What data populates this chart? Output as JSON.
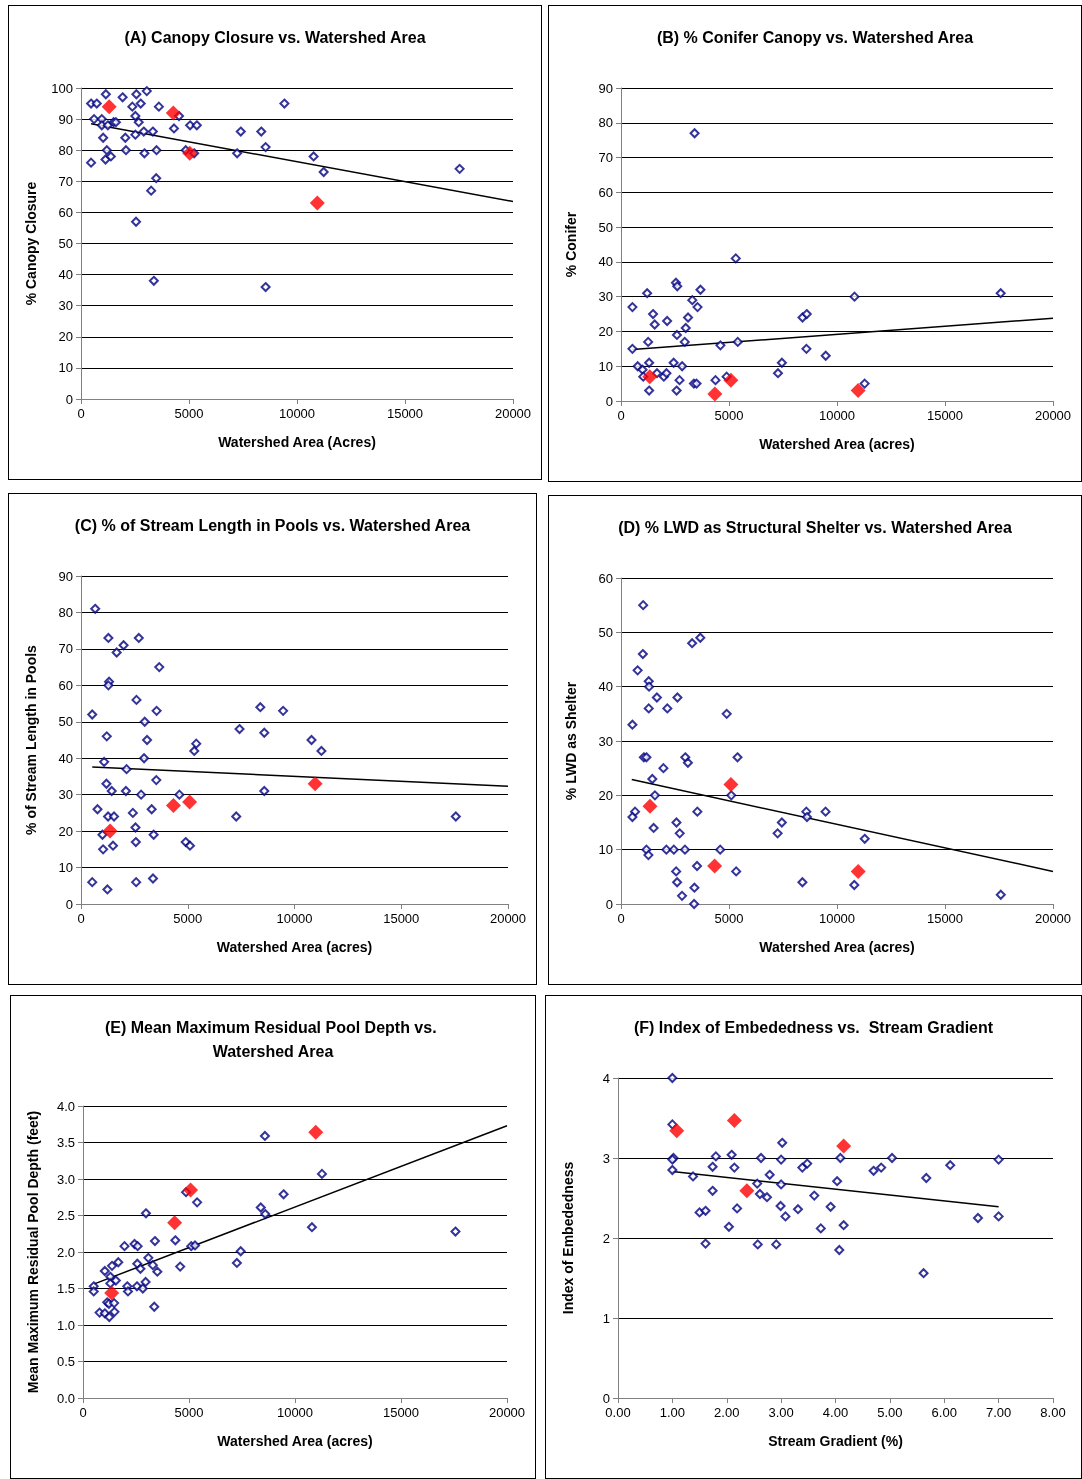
{
  "chart_data": [
    {
      "type": "scatter",
      "title": "(A) Canopy Closure vs. Watershed Area",
      "xlabel": "Watershed Area (Acres)",
      "ylabel": "% Canopy Closure",
      "xlim": [
        0,
        20000
      ],
      "xticks": [
        0,
        5000,
        10000,
        15000,
        20000
      ],
      "ylim": [
        0,
        100
      ],
      "yticks": [
        0,
        10,
        20,
        30,
        40,
        50,
        60,
        70,
        80,
        90,
        100
      ],
      "grid": "y",
      "marker": "diamond",
      "series": [
        {
          "color": "#000080",
          "x": [
            466,
            730,
            1150,
            1927,
            2564,
            3046,
            606,
            963,
            963,
            1243,
            1507,
            1616,
            1026,
            2051,
            2377,
            2517,
            2765,
            2672,
            2517,
            2906,
            3326,
            3606,
            1197,
            2082,
            1135,
            1383,
            466,
            2937,
            3497,
            3482,
            3248,
            2548,
            3372,
            4305,
            4538,
            5051,
            5362,
            4849,
            5238,
            7227,
            7397,
            8345,
            8547,
            8547,
            9417,
            10769,
            11235,
            17529
          ],
          "values": [
            95,
            95,
            98,
            97,
            98,
            99,
            90,
            90,
            88,
            88,
            89,
            89,
            84,
            84,
            94,
            91,
            95,
            89,
            85,
            86,
            86,
            94,
            80,
            80,
            77,
            78,
            76,
            79,
            80,
            71,
            67,
            57,
            38,
            87,
            91,
            88,
            88,
            80,
            79,
            79,
            86,
            86,
            81,
            36,
            95,
            78,
            73,
            74
          ]
        },
        {
          "color": "#ff0000",
          "x": [
            1305,
            4274,
            5035,
            10940
          ],
          "values": [
            94,
            92,
            79,
            63
          ]
        },
        {
          "type": "line",
          "marker": "none",
          "color": "#000000",
          "x": [
            466,
            20000
          ],
          "values": [
            88.5,
            63.5
          ]
        }
      ]
    },
    {
      "type": "scatter",
      "title": "(B) % Conifer Canopy vs. Watershed Area",
      "xlabel": "Watershed Area (acres)",
      "ylabel": "% Conifer",
      "xlim": [
        0,
        20000
      ],
      "xticks": [
        0,
        5000,
        10000,
        15000,
        20000
      ],
      "ylim": [
        0,
        90
      ],
      "yticks": [
        0,
        10,
        20,
        30,
        40,
        50,
        60,
        70,
        80,
        90
      ],
      "grid": "y",
      "marker": "diamond",
      "series": [
        {
          "color": "#000080",
          "x": [
            530,
            530,
            772,
            999,
            1030,
            1211,
            1257,
            1302,
            1302,
            1484,
            1560,
            1666,
            1984,
            2105,
            2135,
            2438,
            2544,
            2604,
            2589,
            2574,
            2710,
            2831,
            2952,
            2998,
            3104,
            3301,
            3543,
            3679,
            3407,
            3376,
            3498,
            4375,
            4603,
            4890,
            5314,
            5405,
            7267,
            7449,
            8403,
            8600,
            8585,
            9478,
            10810,
            11280,
            17578
          ],
          "values": [
            27,
            15,
            10,
            9,
            7,
            31,
            17,
            11,
            3,
            25,
            22,
            8,
            7,
            8,
            23,
            11,
            34,
            33,
            19,
            3,
            6,
            10,
            17,
            21,
            24,
            29,
            27,
            32,
            77,
            5,
            5,
            6,
            16,
            7,
            41,
            17,
            8,
            11,
            24,
            25,
            15,
            13,
            30,
            5,
            31
          ]
        },
        {
          "color": "#ff0000",
          "x": [
            1332,
            4345,
            5087,
            10977
          ],
          "values": [
            7,
            2,
            6,
            3
          ]
        },
        {
          "type": "line",
          "marker": "none",
          "color": "#000000",
          "x": [
            530,
            20000
          ],
          "values": [
            14.8,
            23.8
          ]
        }
      ]
    },
    {
      "type": "scatter",
      "title": "(C) % of Stream Length in Pools vs. Watershed Area",
      "xlabel": "Watershed Area (acres)",
      "ylabel": "% of Stream Length in Pools",
      "xlim": [
        0,
        20000
      ],
      "xticks": [
        0,
        5000,
        10000,
        15000,
        20000
      ],
      "ylim": [
        0,
        90
      ],
      "yticks": [
        0,
        10,
        20,
        30,
        40,
        50,
        60,
        70,
        80,
        90
      ],
      "grid": "y",
      "marker": "diamond",
      "series": [
        {
          "color": "#000080",
          "x": [
            665,
            1284,
            1995,
            1671,
            2707,
            3666,
            1315,
            1284,
            526,
            2598,
            3542,
            2985,
            1207,
            3094,
            1083,
            2135,
            2954,
            1191,
            1439,
            2104,
            2815,
            3527,
            773,
            1268,
            1547,
            2429,
            3310,
            1005,
            2552,
            3403,
            1036,
            1500,
            2568,
            526,
            1237,
            2583,
            3372,
            4609,
            4903,
            5104,
            5305,
            5398,
            7270,
            7425,
            8399,
            8585,
            8585,
            9467,
            10797,
            11261,
            17556
          ],
          "values": [
            81,
            73,
            71,
            69,
            73,
            65,
            61,
            60,
            52,
            56,
            53,
            50,
            46,
            45,
            39,
            37,
            40,
            33,
            31,
            31,
            30,
            34,
            26,
            24,
            24,
            25,
            26,
            19,
            21,
            19,
            15,
            16,
            17,
            6,
            4,
            6,
            7,
            30,
            17,
            16,
            42,
            44,
            24,
            48,
            54,
            47,
            31,
            53,
            45,
            42,
            24
          ]
        },
        {
          "color": "#ff0000",
          "x": [
            1361,
            4331,
            5089,
            10967
          ],
          "values": [
            20,
            27,
            28,
            33
          ]
        },
        {
          "type": "line",
          "marker": "none",
          "color": "#000000",
          "x": [
            526,
            20000
          ],
          "values": [
            37.6,
            32.3
          ]
        }
      ]
    },
    {
      "type": "scatter",
      "title": "(D) % LWD as Structural Shelter vs. Watershed Area",
      "xlabel": "Watershed Area (acres)",
      "ylabel": "% LWD as Shelter",
      "xlim": [
        0,
        20000
      ],
      "xticks": [
        0,
        5000,
        10000,
        15000,
        20000
      ],
      "ylim": [
        0,
        60
      ],
      "yticks": [
        0,
        10,
        20,
        30,
        40,
        50,
        60
      ],
      "grid": "y",
      "marker": "diamond",
      "series": [
        {
          "color": "#000080",
          "x": [
            1027,
            1012,
            770,
            1284,
            1299,
            1662,
            2145,
            2613,
            1284,
            529,
            3293,
            3671,
            4894,
            1057,
            1178,
            1964,
            2976,
            3097,
            5393,
            1450,
            1571,
            5106,
            650,
            529,
            1511,
            2568,
            2719,
            3535,
            1178,
            1269,
            2100,
            2447,
            2961,
            4592,
            2553,
            2598,
            2825,
            3384,
            3520,
            3399,
            5332,
            7251,
            7447,
            8399,
            8580,
            8610,
            9471,
            10801,
            11284,
            17583
          ],
          "values": [
            55,
            46,
            43,
            41,
            40,
            38,
            36,
            38,
            36,
            33,
            48,
            49,
            35,
            27,
            27,
            25,
            27,
            26,
            27,
            23,
            20,
            20,
            17,
            16,
            14,
            15,
            13,
            17,
            10,
            9,
            10,
            10,
            10,
            10,
            6,
            4,
            1.5,
            0,
            7,
            3,
            6,
            13,
            15,
            4,
            17,
            16,
            17,
            3.5,
            12,
            1.7
          ]
        },
        {
          "color": "#ff0000",
          "x": [
            1344,
            4335,
            5091,
            10982
          ],
          "values": [
            18,
            7,
            22,
            6
          ]
        },
        {
          "type": "line",
          "marker": "none",
          "color": "#000000",
          "x": [
            498,
            20000
          ],
          "values": [
            22.9,
            6
          ]
        }
      ]
    },
    {
      "type": "scatter",
      "title": "(E) Mean Maximum Residual Pool Depth vs. Watershed Area",
      "xlabel": "Watershed Area (acres)",
      "ylabel": "Mean Maximum Residual Pool Depth (feet)",
      "xlim": [
        0,
        20000
      ],
      "xticks": [
        0,
        5000,
        10000,
        15000,
        20000
      ],
      "ylim": [
        0,
        4
      ],
      "yticks": [
        {
          "value": 0,
          "label": "0.0"
        },
        0.5,
        {
          "value": 1,
          "label": "1.0"
        },
        1.5,
        {
          "value": 2,
          "label": "2.0"
        },
        2.5,
        {
          "value": 3,
          "label": "3.0"
        },
        3.5,
        {
          "value": 4,
          "label": "4.0"
        }
      ],
      "grid": "y",
      "marker": "diamond",
      "series": [
        {
          "color": "#000080",
          "x": [
            506,
            506,
            783,
            1028,
            1240,
            1484,
            1142,
            1223,
            1468,
            1028,
            1289,
            1289,
            1370,
            1550,
            1664,
            1958,
            2088,
            2121,
            2431,
            2577,
            2561,
            2545,
            2708,
            2822,
            2953,
            2969,
            3083,
            3295,
            3393,
            3507,
            3361,
            4356,
            4584,
            4861,
            5106,
            5285,
            5383,
            7259,
            7439,
            8385,
            8581,
            8597,
            9462,
            10800,
            11272,
            17569
          ],
          "values": [
            1.53,
            1.46,
            1.17,
            1.16,
            1.11,
            1.18,
            1.31,
            1.29,
            1.3,
            1.74,
            1.66,
            1.57,
            1.81,
            1.61,
            1.86,
            2.08,
            1.53,
            1.46,
            2.11,
            2.08,
            1.84,
            1.53,
            1.77,
            1.5,
            1.59,
            2.53,
            1.92,
            1.82,
            2.15,
            1.73,
            1.25,
            2.16,
            1.8,
            2.82,
            2.08,
            2.09,
            2.68,
            1.85,
            2.01,
            2.61,
            3.59,
            2.52,
            2.79,
            2.34,
            3.07,
            2.28
          ]
        },
        {
          "color": "#ff0000",
          "x": [
            1354,
            4323,
            5073,
            10979
          ],
          "values": [
            1.44,
            2.4,
            2.85,
            3.64
          ]
        },
        {
          "type": "line",
          "marker": "none",
          "color": "#000000",
          "x": [
            506,
            20000
          ],
          "values": [
            1.56,
            3.73
          ]
        }
      ]
    },
    {
      "type": "scatter",
      "title": "(F) Index of Embededness vs.  Stream Gradient",
      "xlabel": "Stream Gradient (%)",
      "ylabel": "Index of Embededness",
      "xlim": [
        0,
        8
      ],
      "xticks": [
        {
          "value": 0,
          "label": "0.00"
        },
        {
          "value": 1,
          "label": "1.00"
        },
        {
          "value": 2,
          "label": "2.00"
        },
        {
          "value": 3,
          "label": "3.00"
        },
        {
          "value": 4,
          "label": "4.00"
        },
        {
          "value": 5,
          "label": "5.00"
        },
        {
          "value": 6,
          "label": "6.00"
        },
        {
          "value": 7,
          "label": "7.00"
        },
        {
          "value": 8,
          "label": "8.00"
        }
      ],
      "ylim": [
        0,
        4
      ],
      "yticks": [
        0,
        1,
        2,
        3,
        4
      ],
      "grid": "y",
      "marker": "diamond",
      "series": [
        {
          "color": "#000080",
          "x": [
            1,
            1,
            1.02,
            1,
            1,
            1.38,
            1.5,
            1.61,
            1.61,
            1.74,
            1.74,
            1.8,
            2.04,
            2.09,
            2.14,
            2.19,
            2.56,
            2.57,
            2.61,
            2.63,
            2.74,
            2.79,
            2.91,
            2.99,
            3,
            3,
            3.02,
            3.08,
            3.31,
            3.39,
            3.48,
            3.61,
            3.73,
            3.91,
            4.03,
            4.07,
            4.09,
            4.15,
            4.7,
            4.84,
            5.04,
            5.62,
            5.67,
            6.11,
            6.62,
            7,
            7
          ],
          "values": [
            4,
            3.42,
            3,
            2.98,
            2.85,
            2.77,
            2.32,
            2.34,
            1.93,
            2.89,
            2.59,
            3.02,
            2.14,
            3.04,
            2.88,
            2.37,
            2.68,
            1.92,
            2.55,
            3,
            2.51,
            2.79,
            1.92,
            2.4,
            2.98,
            2.67,
            3.19,
            2.27,
            2.36,
            2.88,
            2.93,
            2.53,
            2.12,
            2.39,
            2.71,
            1.85,
            3,
            2.16,
            2.84,
            2.88,
            3,
            1.56,
            2.75,
            2.91,
            2.25,
            2.98,
            2.27
          ]
        },
        {
          "color": "#ff0000",
          "x": [
            1.08,
            2.14,
            2.37,
            4.15
          ],
          "values": [
            3.34,
            3.47,
            2.59,
            3.15
          ]
        },
        {
          "type": "line",
          "marker": "none",
          "color": "#000000",
          "x": [
            1,
            7
          ],
          "values": [
            2.83,
            2.39
          ]
        }
      ]
    }
  ]
}
